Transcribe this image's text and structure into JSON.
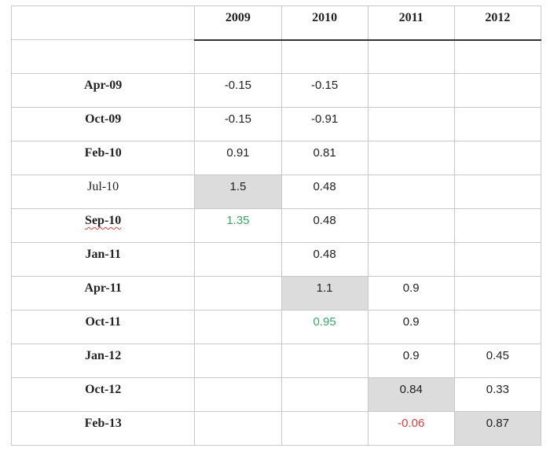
{
  "header": {
    "years": [
      "2009",
      "2010",
      "2011",
      "2012"
    ]
  },
  "rows": [
    {
      "label": "Apr-09",
      "bold": true,
      "cells": [
        "-0.15",
        "-0.15",
        "",
        ""
      ]
    },
    {
      "label": "Oct-09",
      "bold": true,
      "cells": [
        "-0.15",
        "-0.91",
        "",
        ""
      ]
    },
    {
      "label": "Feb-10",
      "bold": true,
      "cells": [
        "0.91",
        "0.81",
        "",
        ""
      ]
    },
    {
      "label": "Jul-10",
      "bold": false,
      "cells": [
        "1.5",
        "0.48",
        "",
        ""
      ]
    },
    {
      "label": "Sep-10",
      "bold": true,
      "cells": [
        "1.35",
        "0.48",
        "",
        ""
      ]
    },
    {
      "label": "Jan-11",
      "bold": true,
      "cells": [
        "",
        "0.48",
        "",
        ""
      ]
    },
    {
      "label": "Apr-11",
      "bold": true,
      "cells": [
        "",
        "1.1",
        "0.9",
        ""
      ]
    },
    {
      "label": "Oct-11",
      "bold": true,
      "cells": [
        "",
        "0.95",
        "0.9",
        ""
      ]
    },
    {
      "label": "Jan-12",
      "bold": true,
      "cells": [
        "",
        "",
        "0.9",
        "0.45"
      ]
    },
    {
      "label": "Oct-12",
      "bold": true,
      "cells": [
        "",
        "",
        "0.84",
        "0.33"
      ]
    },
    {
      "label": "Feb-13",
      "bold": true,
      "cells": [
        "",
        "",
        "-0.06",
        "0.87"
      ]
    }
  ],
  "colors": {
    "shade": "#dcdcdc",
    "green_value": "#3aa66a",
    "red_value": "#d9413b"
  }
}
